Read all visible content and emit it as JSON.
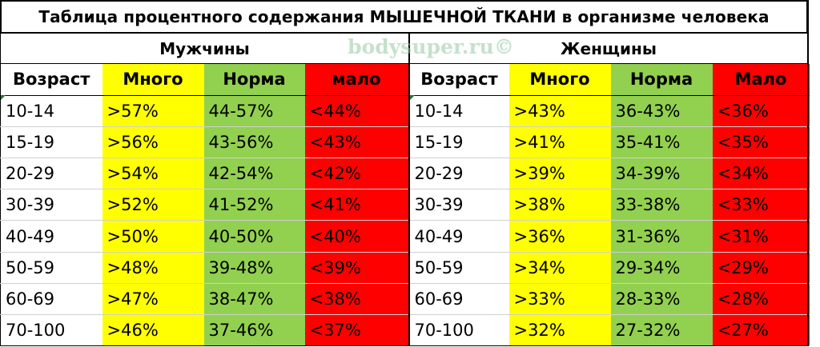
{
  "title": "Таблица процентного содержания МЫШЕЧНОЙ ТКАНИ в организме человека",
  "watermark": "bodysuper.ru©",
  "men": {
    "label": "Мужчины",
    "headers": {
      "age": "Возраст",
      "high": "Много",
      "norm": "Норма",
      "low": "мало"
    },
    "rows": [
      {
        "age": "10-14",
        "high": ">57%",
        "norm": "44-57%",
        "low": "<44%"
      },
      {
        "age": "15-19",
        "high": ">56%",
        "norm": "43-56%",
        "low": "<43%"
      },
      {
        "age": "20-29",
        "high": ">54%",
        "norm": "42-54%",
        "low": "<42%"
      },
      {
        "age": "30-39",
        "high": ">52%",
        "norm": "41-52%",
        "low": "<41%"
      },
      {
        "age": "40-49",
        "high": ">50%",
        "norm": "40-50%",
        "low": "<40%"
      },
      {
        "age": "50-59",
        "high": ">48%",
        "norm": "39-48%",
        "low": "<39%"
      },
      {
        "age": "60-69",
        "high": ">47%",
        "norm": "38-47%",
        "low": "<38%"
      },
      {
        "age": "70-100",
        "high": ">46%",
        "norm": "37-46%",
        "low": "<37%"
      }
    ]
  },
  "women": {
    "label": "Женщины",
    "headers": {
      "age": "Возраст",
      "high": "Много",
      "norm": "Норма",
      "low": "Мало"
    },
    "rows": [
      {
        "age": "10-14",
        "high": ">43%",
        "norm": "36-43%",
        "low": "<36%"
      },
      {
        "age": "15-19",
        "high": ">41%",
        "norm": "35-41%",
        "low": "<35%"
      },
      {
        "age": "20-29",
        "high": ">39%",
        "norm": "34-39%",
        "low": "<34%"
      },
      {
        "age": "30-39",
        "high": ">38%",
        "norm": "33-38%",
        "low": "<33%"
      },
      {
        "age": "40-49",
        "high": ">36%",
        "norm": "31-36%",
        "low": "<31%"
      },
      {
        "age": "50-59",
        "high": ">34%",
        "norm": "29-34%",
        "low": "<29%"
      },
      {
        "age": "60-69",
        "high": ">33%",
        "norm": "28-33%",
        "low": "<28%"
      },
      {
        "age": "70-100",
        "high": ">32%",
        "norm": "27-32%",
        "low": "<27%"
      }
    ]
  },
  "colors": {
    "high": "#ffff00",
    "norm": "#92d050",
    "low": "#ff0000"
  }
}
